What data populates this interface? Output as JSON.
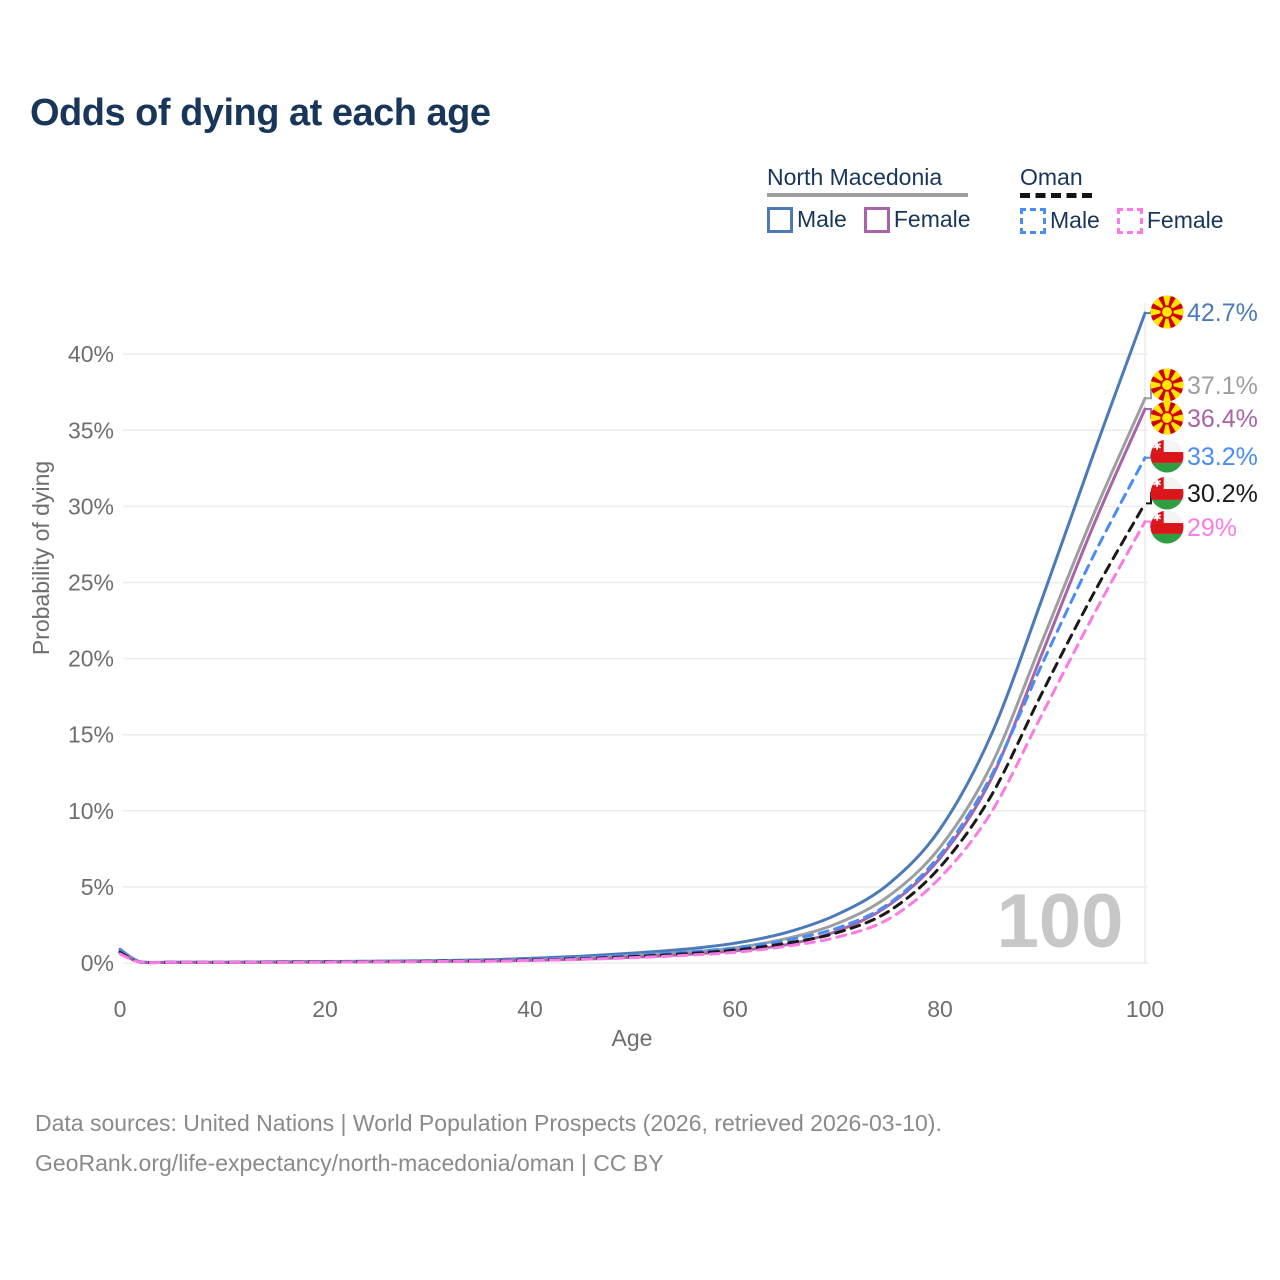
{
  "title": "Odds of dying at each age",
  "watermark": "100",
  "legend": {
    "groups": [
      {
        "country": "North Macedonia",
        "line_style": "solid",
        "underline_color": "#9e9e9e",
        "items": [
          {
            "label": "Male",
            "color": "#4c7ab9"
          },
          {
            "label": "Female",
            "color": "#a964a7"
          }
        ]
      },
      {
        "country": "Oman",
        "line_style": "dashed",
        "underline_color": "#141414",
        "items": [
          {
            "label": "Male",
            "color": "#4a8cf5"
          },
          {
            "label": "Female",
            "color": "#fb7ae4"
          }
        ]
      }
    ]
  },
  "footer": {
    "line1": "Data sources: United Nations | World Population Prospects (2026, retrieved 2026-03-10).",
    "line2": "GeoRank.org/life-expectancy/north-macedonia/oman | CC BY"
  },
  "chart_data": {
    "type": "line",
    "title": "Odds of dying at each age",
    "xlabel": "Age",
    "ylabel": "Probability of dying",
    "x_ticks": [
      0,
      20,
      40,
      60,
      80,
      100
    ],
    "y_tick_labels": [
      "0%",
      "5%",
      "10%",
      "15%",
      "20%",
      "25%",
      "30%",
      "35%",
      "40%"
    ],
    "y_tick_values": [
      0,
      5,
      10,
      15,
      20,
      25,
      30,
      35,
      40
    ],
    "xlim": [
      0,
      100
    ],
    "ylim_percent": [
      0,
      43
    ],
    "grid": "horizontal",
    "age_cursor": 100,
    "ages": [
      0,
      2,
      5,
      10,
      15,
      20,
      25,
      30,
      35,
      40,
      45,
      50,
      55,
      60,
      65,
      70,
      75,
      80,
      85,
      90,
      95,
      100
    ],
    "series": [
      {
        "name": "North Macedonia Male",
        "country": "mk",
        "sex": "Male",
        "dash": false,
        "color": "#4c7ab9",
        "end_label": "42.7%",
        "end_value": 42.7,
        "values": [
          0.9,
          0.07,
          0.05,
          0.05,
          0.08,
          0.1,
          0.12,
          0.15,
          0.2,
          0.3,
          0.45,
          0.65,
          0.9,
          1.3,
          2.0,
          3.2,
          5.2,
          8.8,
          15.0,
          24.0,
          33.5,
          42.7
        ]
      },
      {
        "name": "North Macedonia Both sexes",
        "country": "mk",
        "sex": "Both",
        "dash": false,
        "color": "#9e9e9e",
        "end_label": "37.1%",
        "end_value": 37.1,
        "values": [
          0.8,
          0.06,
          0.04,
          0.04,
          0.06,
          0.08,
          0.1,
          0.12,
          0.16,
          0.22,
          0.33,
          0.5,
          0.7,
          1.0,
          1.6,
          2.6,
          4.4,
          7.6,
          13.0,
          21.2,
          29.5,
          37.1
        ]
      },
      {
        "name": "North Macedonia Female",
        "country": "mk",
        "sex": "Female",
        "dash": false,
        "color": "#a964a7",
        "end_label": "36.4%",
        "end_value": 36.4,
        "values": [
          0.7,
          0.05,
          0.04,
          0.04,
          0.05,
          0.06,
          0.08,
          0.1,
          0.12,
          0.17,
          0.25,
          0.38,
          0.55,
          0.8,
          1.2,
          2.1,
          3.8,
          6.9,
          12.1,
          20.4,
          28.8,
          36.4
        ]
      },
      {
        "name": "Oman Male",
        "country": "om",
        "sex": "Male",
        "dash": true,
        "color": "#4a8cf5",
        "end_label": "33.2%",
        "end_value": 33.2,
        "values": [
          0.8,
          0.06,
          0.05,
          0.05,
          0.07,
          0.09,
          0.11,
          0.13,
          0.17,
          0.24,
          0.35,
          0.5,
          0.7,
          1.0,
          1.5,
          2.3,
          3.9,
          7.1,
          12.3,
          19.7,
          26.8,
          33.2
        ]
      },
      {
        "name": "Oman Both sexes",
        "country": "om",
        "sex": "Both",
        "dash": true,
        "color": "#1a1a1a",
        "end_label": "30.2%",
        "end_value": 30.2,
        "values": [
          0.7,
          0.05,
          0.04,
          0.04,
          0.06,
          0.08,
          0.09,
          0.11,
          0.14,
          0.2,
          0.28,
          0.42,
          0.6,
          0.85,
          1.3,
          2.0,
          3.4,
          6.3,
          11.0,
          17.8,
          24.3,
          30.2
        ]
      },
      {
        "name": "Oman Female",
        "country": "om",
        "sex": "Female",
        "dash": true,
        "color": "#fb7ae4",
        "end_label": "29%",
        "end_value": 29.0,
        "values": [
          0.6,
          0.05,
          0.04,
          0.04,
          0.05,
          0.06,
          0.08,
          0.09,
          0.12,
          0.17,
          0.24,
          0.35,
          0.5,
          0.7,
          1.1,
          1.7,
          2.9,
          5.6,
          9.9,
          16.4,
          22.9,
          29.0
        ]
      }
    ]
  },
  "colors": {
    "title_text": "#18365a",
    "axis_text": "#6e6e6e",
    "gridline": "#ebebeb",
    "watermark": "#c7c7c7",
    "footer_text": "#8a8a8a",
    "mk_flag_red": "#d20000",
    "mk_flag_yellow": "#ffe600",
    "om_flag_red": "#db161b",
    "om_flag_green": "#2e9e41"
  }
}
